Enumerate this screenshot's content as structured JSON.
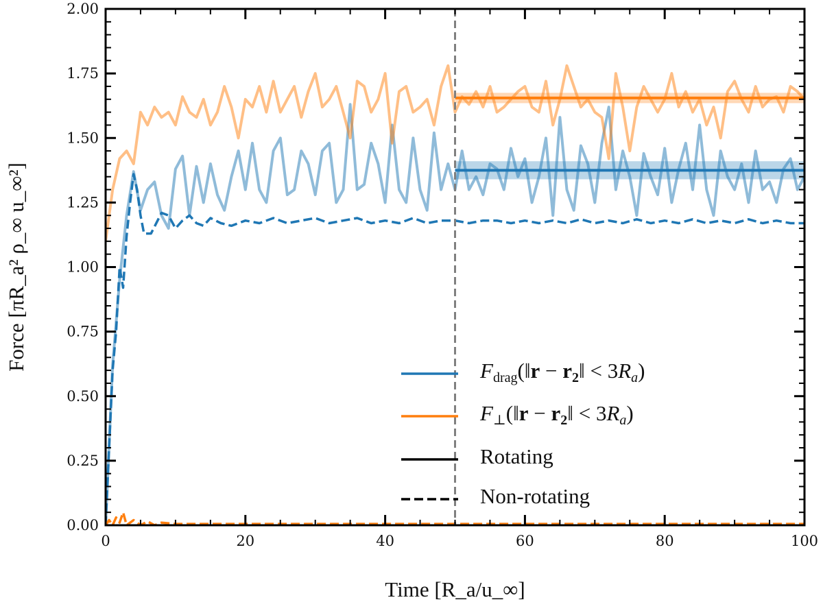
{
  "chart_data": {
    "type": "line",
    "xlabel": "Time [R_a/u_∞]",
    "ylabel": "Force [πR_a² ρ_∞ u_∞²]",
    "xlim": [
      0,
      100
    ],
    "ylim": [
      0,
      2.0
    ],
    "x_ticks": [
      "0",
      "20",
      "40",
      "60",
      "80",
      "100"
    ],
    "y_ticks": [
      "0.00",
      "0.25",
      "0.50",
      "0.75",
      "1.00",
      "1.25",
      "1.50",
      "1.75",
      "2.00"
    ],
    "grid": false,
    "legend_placement": "lower-right",
    "colors": {
      "drag": "#1f77b4",
      "perp": "#ff7f0e",
      "vline": "#808080"
    },
    "vertical_line_x": 50,
    "legend": [
      {
        "symbol": "F",
        "sub": "drag",
        "pre": "(‖",
        "bold1": "r",
        "mid": " − ",
        "bold2": "r",
        "bold2sub": "2",
        "post": "‖ < 3",
        "R": "R",
        "Rsub": "a",
        "close": ")",
        "color": "#1f77b4",
        "style": "solid"
      },
      {
        "symbol": "F",
        "sub": "⊥",
        "pre": "(‖",
        "bold1": "r",
        "mid": " − ",
        "bold2": "r",
        "bold2sub": "2",
        "post": "‖ < 3",
        "R": "R",
        "Rsub": "a",
        "close": ")",
        "color": "#ff7f0e",
        "style": "solid"
      },
      {
        "text": "Rotating",
        "color": "#000000",
        "style": "solid"
      },
      {
        "text": "Non-rotating",
        "color": "#000000",
        "style": "dashed"
      }
    ],
    "series": [
      {
        "key": "drag_rotating",
        "style": "solid",
        "color": "#1f77b4",
        "alpha": 0.5,
        "x_range": [
          0,
          100
        ],
        "values": [
          0,
          0.62,
          0.95,
          1.2,
          1.37,
          1.22,
          1.3,
          1.33,
          1.2,
          1.15,
          1.38,
          1.43,
          1.2,
          1.39,
          1.25,
          1.4,
          1.28,
          1.22,
          1.35,
          1.45,
          1.3,
          1.48,
          1.3,
          1.25,
          1.45,
          1.5,
          1.28,
          1.3,
          1.45,
          1.4,
          1.28,
          1.45,
          1.48,
          1.25,
          1.3,
          1.63,
          1.3,
          1.32,
          1.48,
          1.4,
          1.25,
          1.55,
          1.3,
          1.25,
          1.5,
          1.3,
          1.22,
          1.52,
          1.3,
          1.4,
          1.3,
          1.45,
          1.3,
          1.35,
          1.28,
          1.4,
          1.38,
          1.3,
          1.46,
          1.35,
          1.42,
          1.25,
          1.35,
          1.5,
          1.2,
          1.58,
          1.3,
          1.22,
          1.47,
          1.4,
          1.25,
          1.48,
          1.62,
          1.3,
          1.45,
          1.35,
          1.2,
          1.44,
          1.35,
          1.28,
          1.46,
          1.25,
          1.38,
          1.48,
          1.3,
          1.55,
          1.3,
          1.2,
          1.45,
          1.35,
          1.3,
          1.4,
          1.25,
          1.45,
          1.3,
          1.33,
          1.25,
          1.38,
          1.42,
          1.3,
          1.35
        ]
      },
      {
        "key": "perp_rotating",
        "style": "solid",
        "color": "#ff7f0e",
        "alpha": 0.5,
        "x_range": [
          0,
          100
        ],
        "values": [
          1.1,
          1.3,
          1.42,
          1.45,
          1.4,
          1.6,
          1.55,
          1.62,
          1.58,
          1.6,
          1.55,
          1.66,
          1.6,
          1.58,
          1.65,
          1.55,
          1.6,
          1.7,
          1.62,
          1.5,
          1.65,
          1.62,
          1.7,
          1.6,
          1.72,
          1.6,
          1.65,
          1.7,
          1.58,
          1.68,
          1.75,
          1.62,
          1.65,
          1.7,
          1.6,
          1.5,
          1.72,
          1.7,
          1.6,
          1.65,
          1.75,
          1.48,
          1.68,
          1.7,
          1.6,
          1.62,
          1.65,
          1.55,
          1.7,
          1.78,
          1.6,
          1.66,
          1.63,
          1.68,
          1.62,
          1.7,
          1.6,
          1.62,
          1.65,
          1.68,
          1.7,
          1.62,
          1.6,
          1.72,
          1.55,
          1.65,
          1.78,
          1.7,
          1.62,
          1.65,
          1.6,
          1.58,
          1.42,
          1.75,
          1.62,
          1.45,
          1.62,
          1.7,
          1.65,
          1.6,
          1.65,
          1.75,
          1.62,
          1.68,
          1.6,
          1.65,
          1.55,
          1.62,
          1.5,
          1.68,
          1.72,
          1.65,
          1.6,
          1.7,
          1.62,
          1.65,
          1.66,
          1.6,
          1.7,
          1.68,
          1.65
        ]
      },
      {
        "key": "drag_nonrotating",
        "style": "dashed",
        "color": "#1f77b4",
        "alpha": 1,
        "points": [
          [
            0,
            0
          ],
          [
            0.5,
            0.3
          ],
          [
            1,
            0.6
          ],
          [
            1.5,
            0.75
          ],
          [
            2,
            1.0
          ],
          [
            2.5,
            0.92
          ],
          [
            3,
            1.12
          ],
          [
            3.5,
            1.25
          ],
          [
            4,
            1.36
          ],
          [
            4.5,
            1.3
          ],
          [
            5,
            1.2
          ],
          [
            5.5,
            1.13
          ],
          [
            6.5,
            1.13
          ],
          [
            8,
            1.21
          ],
          [
            9,
            1.2
          ],
          [
            10,
            1.15
          ],
          [
            11,
            1.18
          ],
          [
            12,
            1.2
          ],
          [
            13,
            1.17
          ],
          [
            14,
            1.16
          ],
          [
            15,
            1.19
          ],
          [
            16.5,
            1.17
          ],
          [
            18,
            1.16
          ],
          [
            20,
            1.18
          ],
          [
            22,
            1.17
          ],
          [
            24,
            1.19
          ],
          [
            26,
            1.17
          ],
          [
            28,
            1.18
          ],
          [
            30,
            1.19
          ],
          [
            32,
            1.17
          ],
          [
            34,
            1.18
          ],
          [
            36,
            1.19
          ],
          [
            38,
            1.17
          ],
          [
            40,
            1.18
          ],
          [
            42,
            1.17
          ],
          [
            44,
            1.19
          ],
          [
            46,
            1.17
          ],
          [
            48,
            1.18
          ],
          [
            50,
            1.18
          ],
          [
            52,
            1.17
          ],
          [
            54,
            1.18
          ],
          [
            56,
            1.18
          ],
          [
            58,
            1.17
          ],
          [
            60,
            1.18
          ],
          [
            62,
            1.17
          ],
          [
            64,
            1.18
          ],
          [
            66,
            1.17
          ],
          [
            68,
            1.185
          ],
          [
            70,
            1.17
          ],
          [
            72,
            1.18
          ],
          [
            74,
            1.17
          ],
          [
            76,
            1.185
          ],
          [
            78,
            1.17
          ],
          [
            80,
            1.18
          ],
          [
            82,
            1.17
          ],
          [
            84,
            1.185
          ],
          [
            86,
            1.17
          ],
          [
            88,
            1.18
          ],
          [
            90,
            1.17
          ],
          [
            92,
            1.185
          ],
          [
            94,
            1.17
          ],
          [
            96,
            1.18
          ],
          [
            98,
            1.17
          ],
          [
            100,
            1.17
          ]
        ]
      },
      {
        "key": "perp_nonrotating",
        "style": "dashed",
        "color": "#ff7f0e",
        "alpha": 1,
        "points": [
          [
            0,
            0
          ],
          [
            0.5,
            0.02
          ],
          [
            1,
            0.0
          ],
          [
            1.5,
            0.03
          ],
          [
            2,
            0.01
          ],
          [
            2.5,
            0.05
          ],
          [
            3,
            0.0
          ],
          [
            4,
            0.02
          ],
          [
            5,
            0.0
          ],
          [
            6,
            0.015
          ],
          [
            7,
            0.0
          ],
          [
            8,
            0.01
          ],
          [
            10,
            0.005
          ],
          [
            15,
            0.005
          ],
          [
            100,
            0.005
          ]
        ]
      }
    ],
    "means": [
      {
        "key": "drag_mean",
        "color": "#1f77b4",
        "x_range": [
          50,
          100
        ],
        "value": 1.375,
        "band": [
          1.34,
          1.41
        ]
      },
      {
        "key": "perp_mean",
        "color": "#ff7f0e",
        "x_range": [
          50,
          100
        ],
        "value": 1.655,
        "band": [
          1.635,
          1.675
        ]
      }
    ]
  }
}
